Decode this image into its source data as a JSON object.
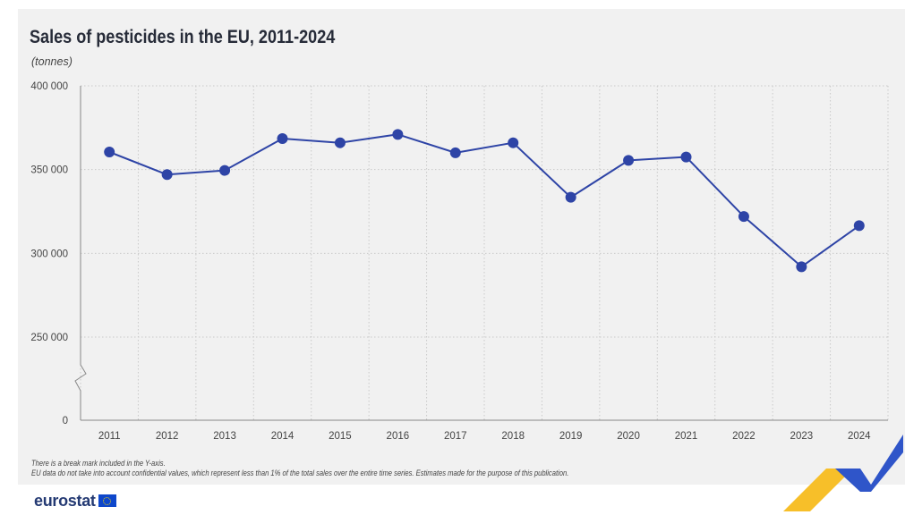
{
  "title": "Sales of pesticides in the EU, 2011-2024",
  "unit_label": "(tonnes)",
  "notes": [
    "There is a break mark included in the Y-axis.",
    "EU data do not take into account confidential values, which represent less than 1% of the total sales over the entire time series. Estimates made for the purpose of this publication."
  ],
  "logo_text": "eurostat",
  "colors": {
    "line": "#2e44a6",
    "marker": "#2e44a6",
    "panel_bg": "#f1f1f1",
    "accent_yellow": "#f7bf29",
    "accent_blue": "#2f55c9"
  },
  "chart_data": {
    "type": "line",
    "title": "Sales of pesticides in the EU, 2011-2024",
    "ylabel": "(tonnes)",
    "xlabel": "",
    "categories": [
      "2011",
      "2012",
      "2013",
      "2014",
      "2015",
      "2016",
      "2017",
      "2018",
      "2019",
      "2020",
      "2021",
      "2022",
      "2023",
      "2024"
    ],
    "series": [
      {
        "values": [
          360500,
          347000,
          349500,
          368500,
          366000,
          371000,
          360000,
          366000,
          333500,
          355500,
          357500,
          322000,
          292000,
          316500
        ]
      }
    ],
    "y_ticks": [
      0,
      250000,
      300000,
      350000,
      400000
    ],
    "y_tick_labels": [
      "0",
      "250 000",
      "300 000",
      "350 000",
      "400 000"
    ],
    "ylim": [
      0,
      400000
    ],
    "y_axis_break": true,
    "grid": "dotted-horizontal-and-vertical",
    "legend": "none"
  }
}
